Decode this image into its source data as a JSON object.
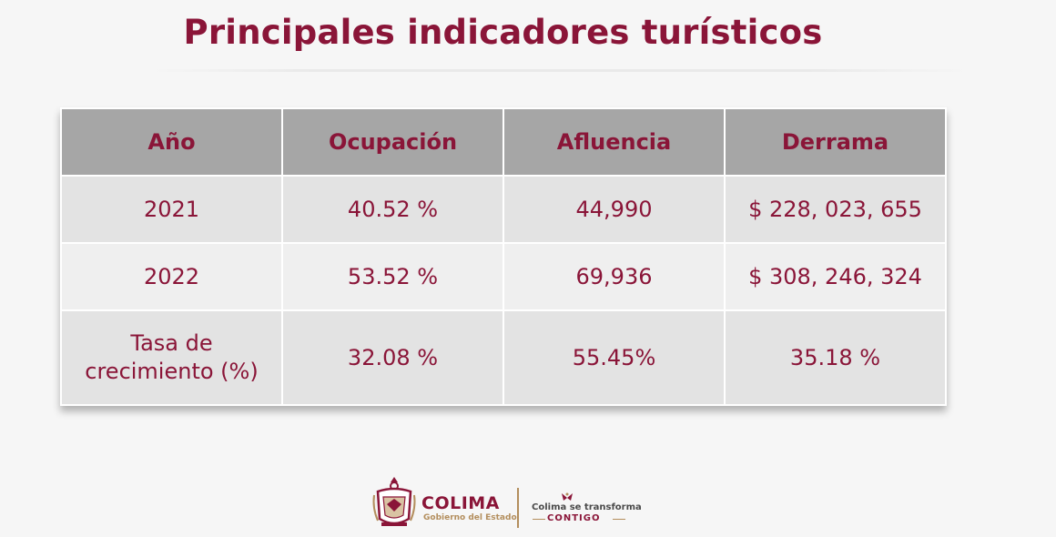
{
  "title": "Principales indicadores turísticos",
  "table": {
    "headers": [
      "Año",
      "Ocupación",
      "Afluencia",
      "Derrama"
    ],
    "rows": [
      [
        "2021",
        "40.52 %",
        "44,990",
        "$ 228, 023, 655"
      ],
      [
        "2022",
        "53.52 %",
        "69,936",
        "$ 308, 246, 324"
      ],
      [
        "Tasa de crecimiento (%)",
        "32.08 %",
        "55.45%",
        "35.18 %"
      ]
    ]
  },
  "footer": {
    "logo_name": "COLIMA",
    "logo_subtitle": "Gobierno del Estado",
    "slogan_line1": "Colima se transforma",
    "slogan_line2": "CONTIGO"
  },
  "colors": {
    "accent": "#8a1538",
    "gold": "#b38e5d",
    "header_bg": "#a6a6a6",
    "row_bg": "#e3e3e3",
    "row_alt_bg": "#efefef"
  }
}
